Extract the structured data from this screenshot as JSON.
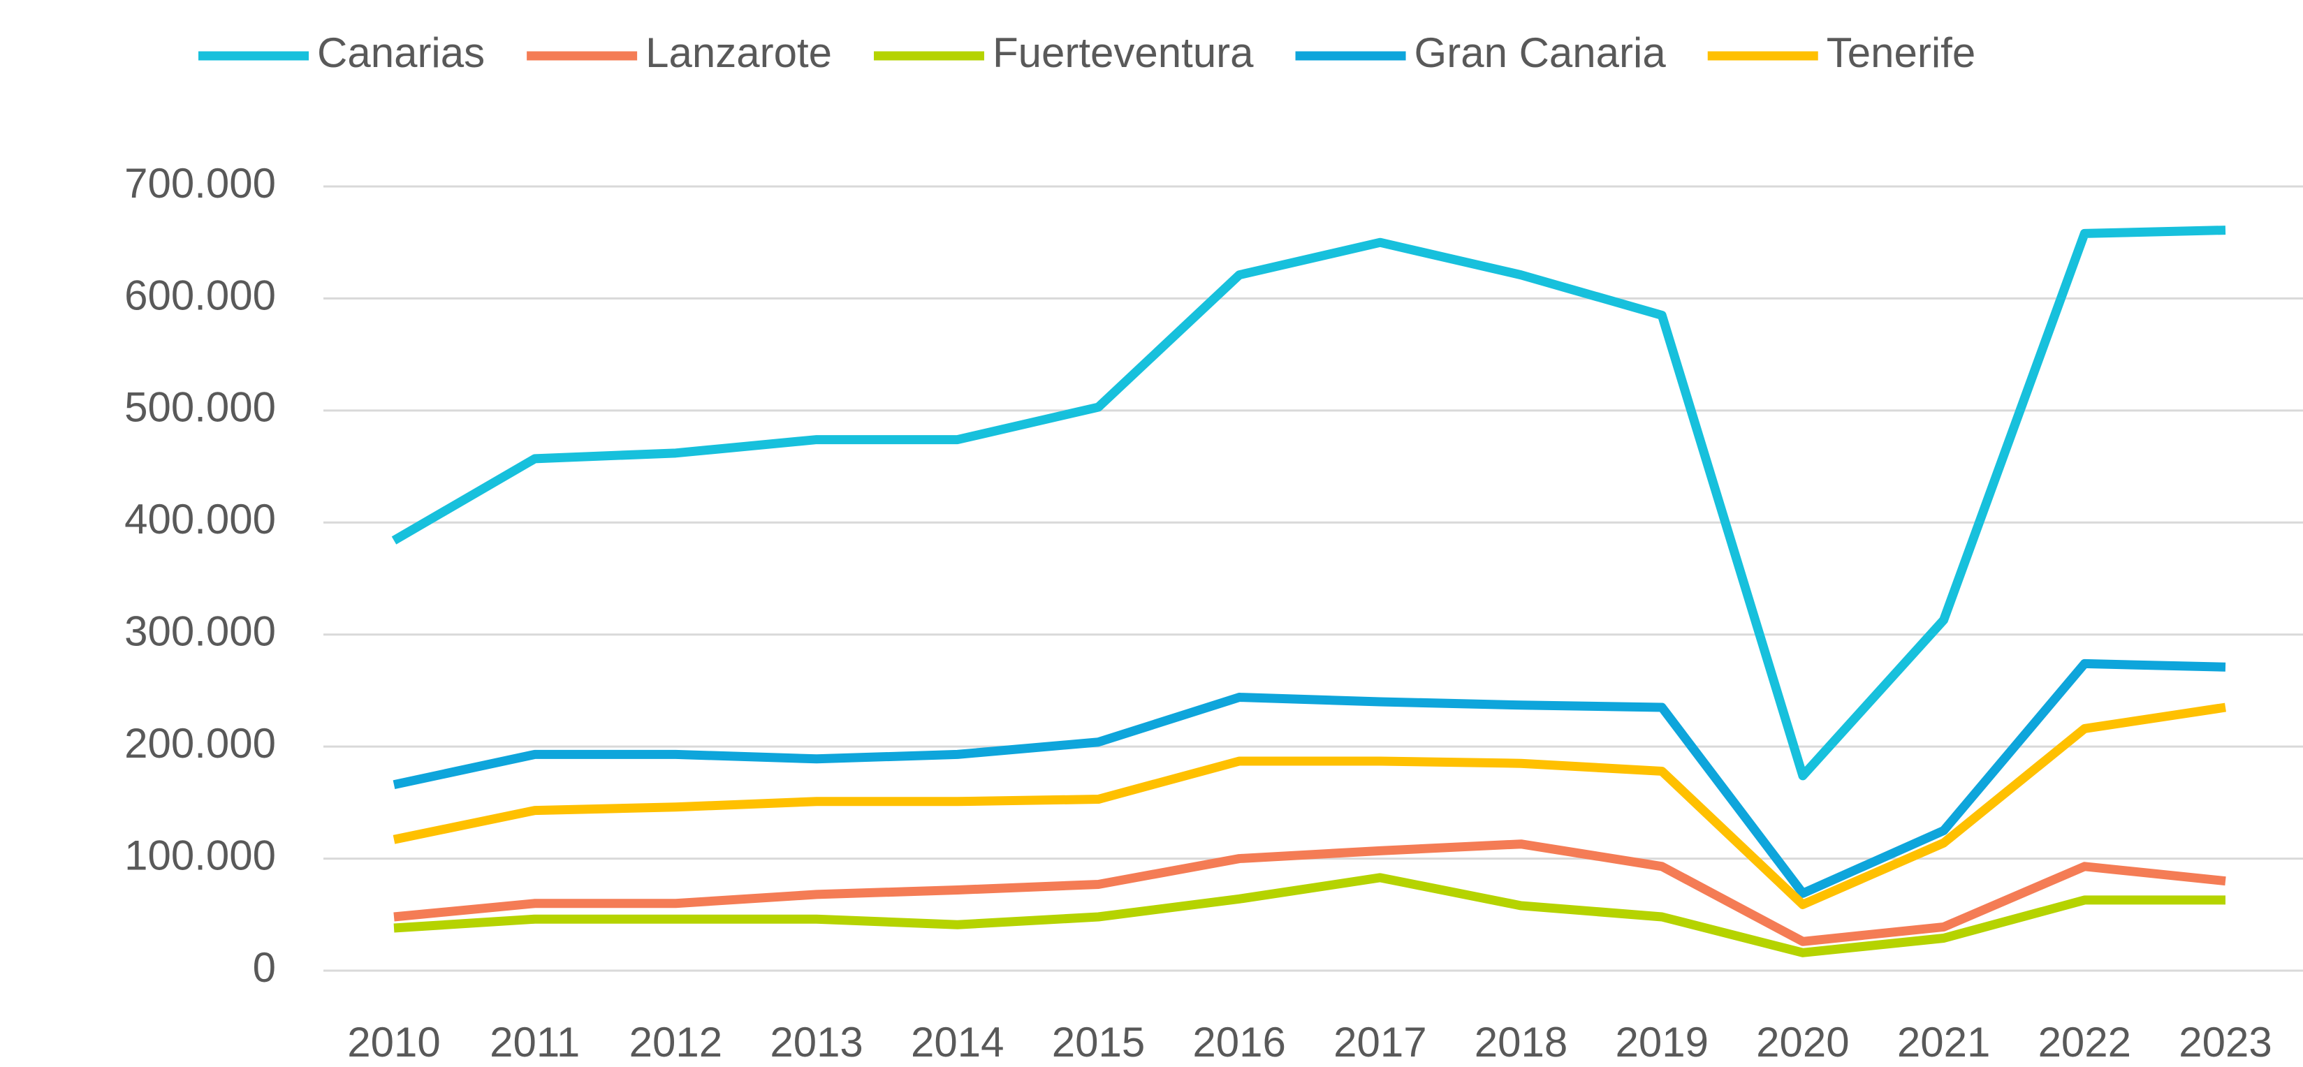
{
  "chart_data": {
    "type": "line",
    "categories": [
      "2010",
      "2011",
      "2012",
      "2013",
      "2014",
      "2015",
      "2016",
      "2017",
      "2018",
      "2019",
      "2020",
      "2021",
      "2022",
      "2023"
    ],
    "series": [
      {
        "name": "Canarias",
        "color": "#17c0dc",
        "values": [
          384000,
          457000,
          462000,
          474000,
          474000,
          503000,
          621000,
          650000,
          621000,
          585000,
          174000,
          313000,
          658000,
          661000
        ]
      },
      {
        "name": "Lanzarote",
        "color": "#f47c55",
        "values": [
          48000,
          60000,
          60000,
          68000,
          72000,
          77000,
          100000,
          107000,
          113000,
          93000,
          26000,
          39000,
          93000,
          80000
        ]
      },
      {
        "name": "Fuerteventura",
        "color": "#b5d300",
        "values": [
          38000,
          46000,
          46000,
          46000,
          41000,
          48000,
          64000,
          83000,
          58000,
          48000,
          16000,
          29000,
          63000,
          63000
        ]
      },
      {
        "name": "Gran Canaria",
        "color": "#0ea5db",
        "values": [
          166000,
          193000,
          193000,
          189000,
          193000,
          204000,
          244000,
          240000,
          237000,
          235000,
          69000,
          125000,
          274000,
          271000
        ]
      },
      {
        "name": "Tenerife",
        "color": "#ffc000",
        "values": [
          117000,
          143000,
          146000,
          151000,
          151000,
          153000,
          187000,
          187000,
          185000,
          178000,
          59000,
          114000,
          216000,
          235000
        ]
      }
    ],
    "ylim": [
      0,
      700000
    ],
    "yticks": [
      0,
      {
        "value": 100000,
        "label": "100.000"
      },
      {
        "value": 200000,
        "label": "200.000"
      },
      {
        "value": 300000,
        "label": "300.000"
      },
      {
        "value": 400000,
        "label": "400.000"
      },
      {
        "value": 500000,
        "label": "500.000"
      },
      {
        "value": 600000,
        "label": "600.000"
      },
      {
        "value": 700000,
        "label": "700.000"
      }
    ],
    "grid": true,
    "legend": "top"
  }
}
